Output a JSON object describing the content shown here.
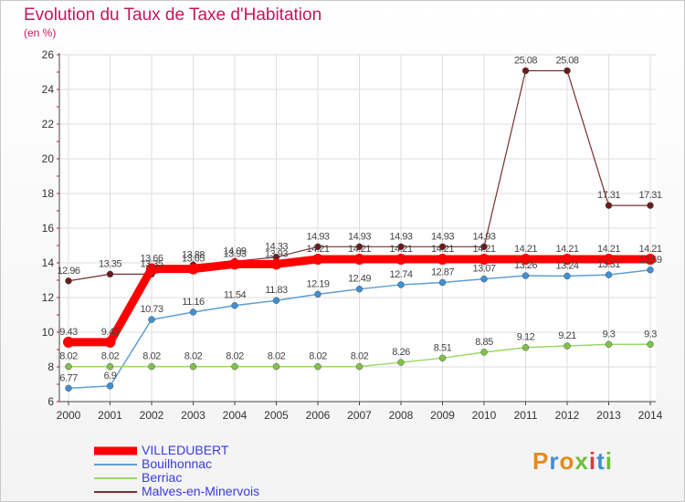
{
  "title": "Evolution du Taux de Taxe d'Habitation",
  "unit_label": "(en %)",
  "logo": {
    "text": "Proxiti",
    "colors": [
      "#e8891a",
      "#3f8fd1",
      "#e8891a",
      "#6fbf3a",
      "#d93a3a",
      "#3f8fd1",
      "#6fbf3a"
    ]
  },
  "chart_data": {
    "type": "line",
    "x": [
      "2000",
      "2001",
      "2002",
      "2003",
      "2004",
      "2005",
      "2006",
      "2007",
      "2008",
      "2009",
      "2010",
      "2011",
      "2012",
      "2013",
      "2014"
    ],
    "ylim": [
      6,
      26
    ],
    "yticks": [
      6,
      8,
      10,
      12,
      14,
      16,
      18,
      20,
      22,
      24,
      26
    ],
    "grid": true,
    "legend_position": "bottom-left",
    "series": [
      {
        "name": "Malves-en-Minervois",
        "color": "#7a2e2e",
        "marker": "#6a1a1a",
        "width": 1.2,
        "values": [
          12.96,
          13.35,
          13.35,
          13.88,
          14.09,
          14.33,
          14.93,
          14.93,
          14.93,
          14.93,
          14.93,
          25.08,
          25.08,
          17.31,
          17.31
        ],
        "labels": [
          "12.96",
          "13.35",
          "13.35",
          "13.88",
          "14.09",
          "14.33",
          "14.93",
          "14.93",
          "14.93",
          "14.93",
          "14.93",
          "25.08",
          "25.08",
          "17.31",
          "17.31"
        ]
      },
      {
        "name": "Bouilhonnac",
        "color": "#5f9fd4",
        "marker": "#3f8fd1",
        "width": 1.5,
        "values": [
          6.77,
          6.9,
          10.73,
          11.16,
          11.54,
          11.83,
          12.19,
          12.49,
          12.74,
          12.87,
          13.07,
          13.26,
          13.24,
          13.31,
          13.59
        ],
        "labels": [
          "6.77",
          "6.9",
          "10.73",
          "11.16",
          "11.54",
          "11.83",
          "12.19",
          "12.49",
          "12.74",
          "12.87",
          "13.07",
          "13.26",
          "13.24",
          "13.31",
          "13.59"
        ]
      },
      {
        "name": "Berriac",
        "color": "#9ad86a",
        "marker": "#7fc24a",
        "width": 1.5,
        "values": [
          8.02,
          8.02,
          8.02,
          8.02,
          8.02,
          8.02,
          8.02,
          8.02,
          8.26,
          8.51,
          8.85,
          9.12,
          9.21,
          9.3,
          9.3
        ],
        "labels": [
          "8.02",
          "8.02",
          "8.02",
          "8.02",
          "8.02",
          "8.02",
          "8.02",
          "8.02",
          "8.26",
          "8.51",
          "8.85",
          "9.12",
          "9.21",
          "9.3",
          "9.3"
        ]
      },
      {
        "name": "VILLEDUBERT",
        "color": "#ff0000",
        "marker": "#ff0000",
        "width": 9,
        "values": [
          9.43,
          9.43,
          13.66,
          13.65,
          13.93,
          13.93,
          14.21,
          14.21,
          14.21,
          14.21,
          14.21,
          14.21,
          14.21,
          14.21,
          14.21
        ],
        "labels": [
          "9.43",
          "9.43",
          "13.66",
          "13.65",
          "13.93",
          "13.93",
          "14.21",
          "14.21",
          "14.21",
          "14.21",
          "14.21",
          "14.21",
          "14.21",
          "14.21",
          "14.21"
        ]
      }
    ],
    "legend_order": [
      "VILLEDUBERT",
      "Bouilhonnac",
      "Berriac",
      "Malves-en-Minervois"
    ]
  }
}
